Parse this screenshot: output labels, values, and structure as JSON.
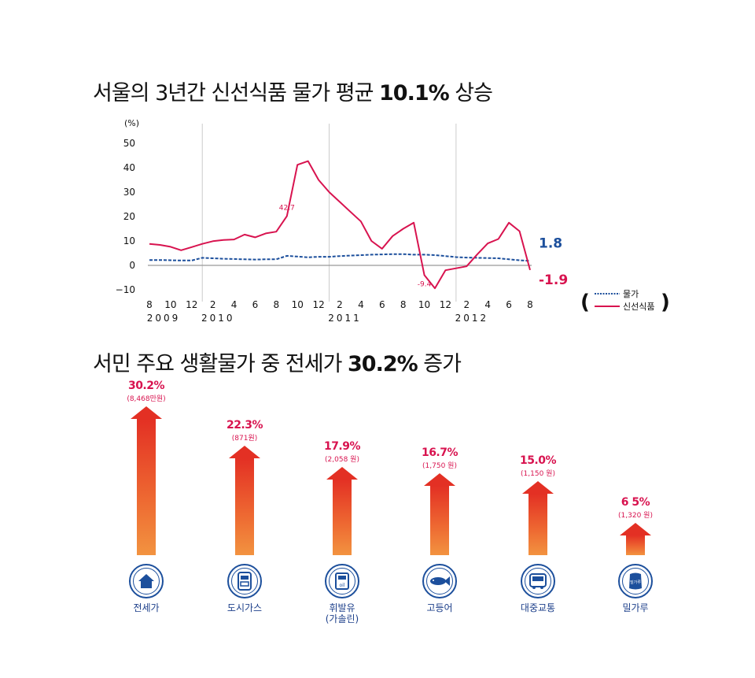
{
  "title1": {
    "prefix": "서울의 3년간 신선식품 물가 평균 ",
    "highlight": "10.1%",
    "suffix": " 상승"
  },
  "title2": {
    "prefix": "서민 주요 생활물가 중 전세가 ",
    "highlight": "30.2%",
    "suffix": " 증가"
  },
  "colors": {
    "prices": "#1c4f9c",
    "fresh_food": "#d8134f",
    "arrow_top": "#e33024",
    "arrow_bottom": "#f29340",
    "icon": "#1c4f9c"
  },
  "chart_data": [
    {
      "type": "line",
      "ylabel": "(%)",
      "ylim": [
        -10,
        50
      ],
      "yticks": [
        -10,
        0,
        10,
        20,
        30,
        40,
        50
      ],
      "ytick_labels": [
        "−10",
        "0",
        "10",
        "20",
        "30",
        "40",
        "50"
      ],
      "x": [
        "2009-08",
        "2009-09",
        "2009-10",
        "2009-11",
        "2009-12",
        "2010-01",
        "2010-02",
        "2010-03",
        "2010-04",
        "2010-05",
        "2010-06",
        "2010-07",
        "2010-08",
        "2010-09",
        "2010-10",
        "2010-11",
        "2010-12",
        "2011-01",
        "2011-02",
        "2011-03",
        "2011-04",
        "2011-05",
        "2011-06",
        "2011-07",
        "2011-08",
        "2011-09",
        "2011-10",
        "2011-11",
        "2011-12",
        "2012-01",
        "2012-02",
        "2012-03",
        "2012-04",
        "2012-05",
        "2012-06",
        "2012-07",
        "2012-08"
      ],
      "xtick_labels": [
        "8",
        "10",
        "12",
        "2",
        "4",
        "6",
        "8",
        "10",
        "12",
        "2",
        "4",
        "6",
        "8",
        "10",
        "12",
        "2",
        "4",
        "6",
        "8"
      ],
      "year_labels": [
        "2009",
        "2010",
        "2011",
        "2012"
      ],
      "year_dividers": [
        "2010-01",
        "2011-01",
        "2012-01"
      ],
      "series": [
        {
          "name": "물가",
          "style": "dashed",
          "color": "#1c4f9c",
          "values": [
            2.2,
            2.2,
            2.1,
            2.0,
            2.0,
            3.1,
            2.9,
            2.7,
            2.6,
            2.5,
            2.4,
            2.5,
            2.5,
            3.9,
            3.6,
            3.3,
            3.5,
            3.5,
            3.8,
            4.0,
            4.2,
            4.4,
            4.5,
            4.6,
            4.6,
            4.4,
            4.4,
            4.2,
            3.8,
            3.4,
            3.2,
            3.1,
            3.0,
            2.9,
            2.5,
            2.1,
            1.8
          ],
          "end_label": "1.8"
        },
        {
          "name": "신선식품",
          "style": "solid",
          "color": "#d8134f",
          "values": [
            8.8,
            8.4,
            7.6,
            6.2,
            7.5,
            8.8,
            9.9,
            10.4,
            10.6,
            12.6,
            11.5,
            13.1,
            13.8,
            20.2,
            41.2,
            42.7,
            35.0,
            30.0,
            26.0,
            22.0,
            18.0,
            10.0,
            6.8,
            12.0,
            15.0,
            17.5,
            -4.0,
            -9.4,
            -2.0,
            -1.2,
            -0.4,
            4.5,
            9.0,
            10.8,
            17.5,
            14.0,
            -1.9
          ],
          "end_label": "-1.9",
          "point_labels": [
            {
              "x": "2010-09",
              "label": "42.7"
            },
            {
              "x": "2011-10",
              "label": "-9.4"
            }
          ]
        }
      ],
      "legend": {
        "position": "right",
        "items": [
          "물가",
          "신선식품"
        ],
        "open": "(",
        "close": ")"
      }
    },
    {
      "type": "bar",
      "categories": [
        "전세가",
        "도시가스",
        "휘발유\n(가솔린)",
        "고등어",
        "대중교통",
        "밀가루"
      ],
      "values": [
        30.2,
        22.3,
        17.9,
        16.7,
        15.0,
        6.5
      ],
      "value_labels": [
        "30.2%",
        "22.3%",
        "17.9%",
        "16.7%",
        "15.0%",
        "6 5%"
      ],
      "sub_labels": [
        "(8,468만원)",
        "(871원)",
        "(2,058 원)",
        "(1,750 원)",
        "(1,150 원)",
        "(1,320 원)"
      ],
      "icons": [
        "house-icon",
        "gas-meter-icon",
        "gas-pump-icon",
        "fish-icon",
        "bus-icon",
        "flour-bag-icon"
      ],
      "icon_texts": [
        "",
        "",
        "oil",
        "",
        "",
        "밀가루"
      ]
    }
  ]
}
